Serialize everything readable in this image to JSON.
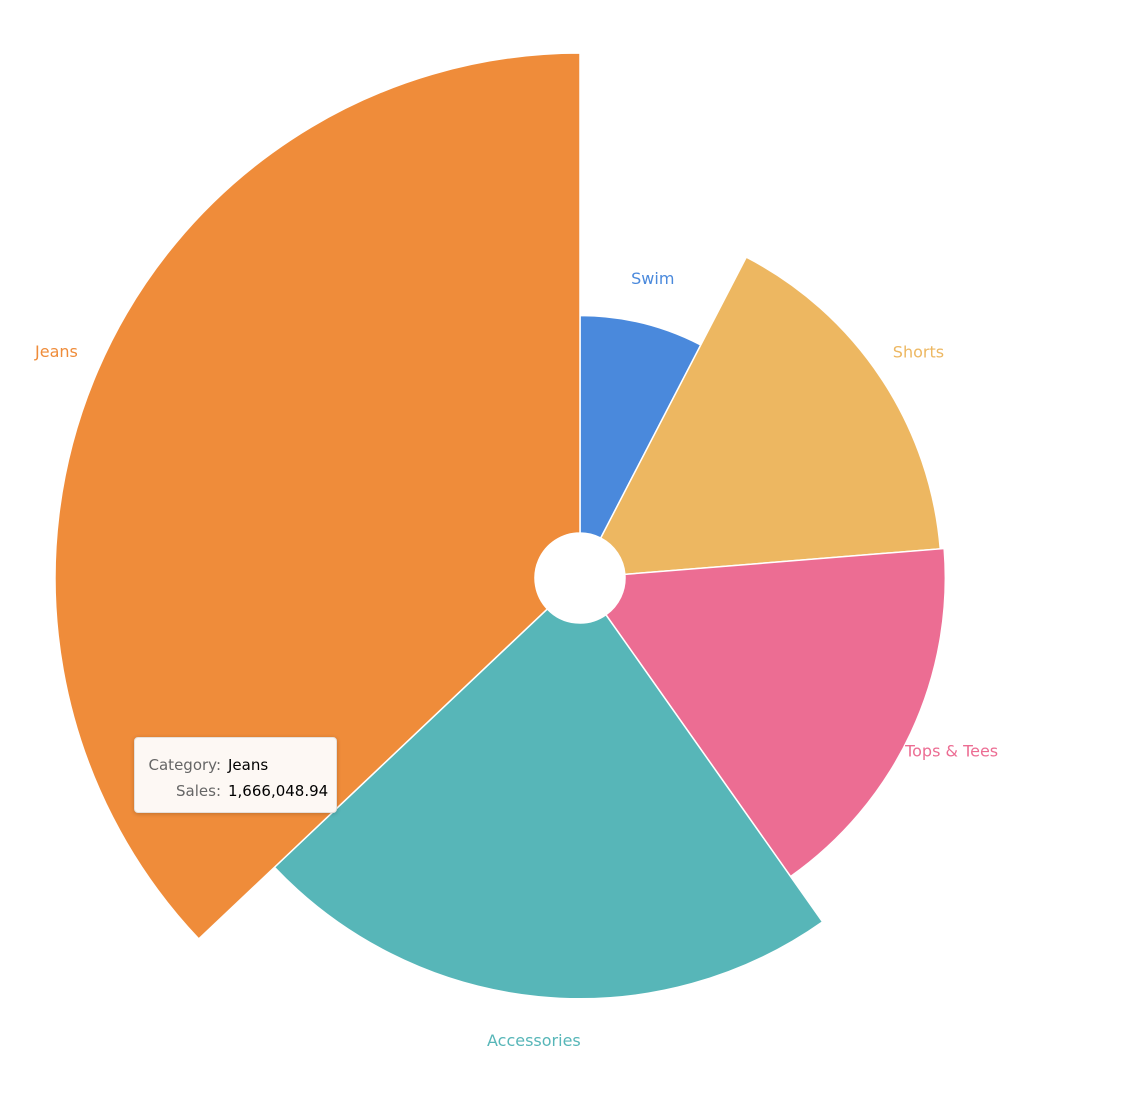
{
  "chart_data": {
    "type": "rose",
    "categories": [
      "Swim",
      "Shorts",
      "Tops & Tees",
      "Accessories",
      "Jeans"
    ],
    "values": [
      342000,
      724000,
      742000,
      1021000,
      1666048.94
    ],
    "colors": [
      "#4a89dc",
      "#edb761",
      "#ec6d93",
      "#57b6b8",
      "#ef8c3a"
    ],
    "tooltip": {
      "fields": [
        "Category:",
        "Sales:"
      ],
      "category": "Jeans",
      "value_label": "1,666,048.94"
    }
  }
}
